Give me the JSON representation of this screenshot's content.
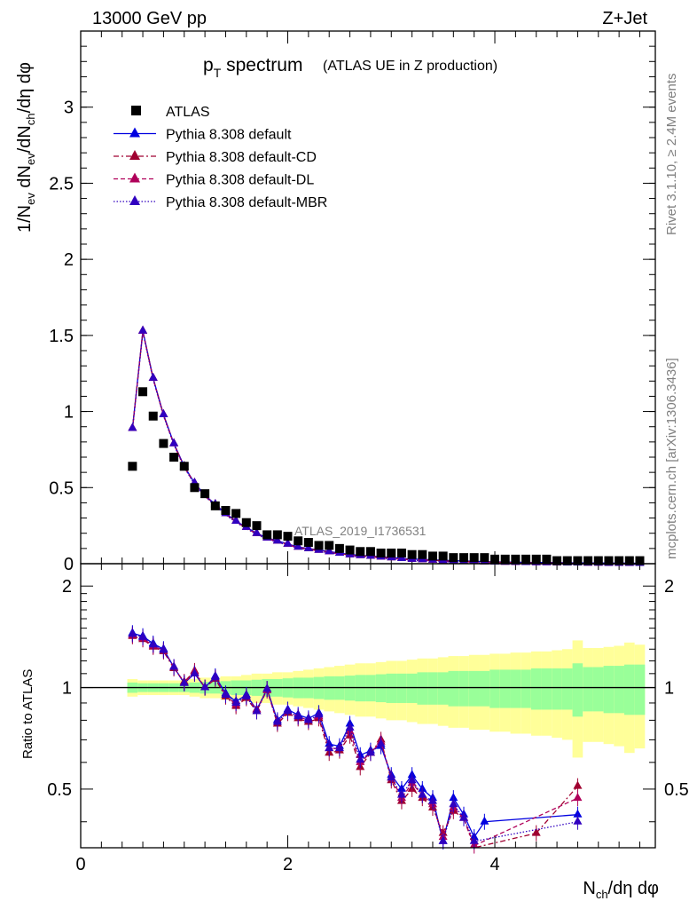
{
  "header": {
    "left": "13000 GeV pp",
    "right": "Z+Jet"
  },
  "plot_title": {
    "main_p": "p",
    "main_sub": "T",
    "main_rest": " spectrum",
    "suffix": "(ATLAS UE in Z production)"
  },
  "side_labels": {
    "rivet": "Rivet 3.1.10, ≥ 2.4M events",
    "mcplots": "mcplots.cern.ch [arXiv:1306.3436]"
  },
  "watermark": "ATLAS_2019_I1736531",
  "axes": {
    "ylabel_main": "1/N_ev dN_ev/dN_ch/dη dφ",
    "ylabel_ratio": "Ratio to ATLAS",
    "xlabel": "N_ch/dη dφ",
    "main_yticks": [
      "0",
      "0.5",
      "1",
      "1.5",
      "2",
      "2.5",
      "3"
    ],
    "ratio_yticks": [
      "0.5",
      "1",
      "2"
    ],
    "xticks": [
      "0",
      "2",
      "4"
    ]
  },
  "legend": [
    {
      "label": "ATLAS",
      "color": "#000000",
      "style": "marker"
    },
    {
      "label": "Pythia 8.308 default",
      "color": "#0000e0",
      "style": "solid"
    },
    {
      "label": "Pythia 8.308 default-CD",
      "color": "#a00030",
      "style": "dashdot"
    },
    {
      "label": "Pythia 8.308 default-DL",
      "color": "#b0005a",
      "style": "dashed"
    },
    {
      "label": "Pythia 8.308 default-MBR",
      "color": "#3000c0",
      "style": "dotted"
    }
  ],
  "chart_data": {
    "type": "scatter",
    "x_range": [
      0,
      5.55
    ],
    "main_ylim": [
      0,
      3.5
    ],
    "ratio_ylim": [
      0.335,
      2.33
    ],
    "ratio_log": true,
    "data": {
      "name": "ATLAS",
      "x": [
        0.5,
        0.6,
        0.7,
        0.8,
        0.9,
        1.0,
        1.1,
        1.2,
        1.3,
        1.4,
        1.5,
        1.6,
        1.7,
        1.8,
        1.9,
        2.0,
        2.1,
        2.2,
        2.3,
        2.4,
        2.5,
        2.6,
        2.7,
        2.8,
        2.9,
        3.0,
        3.1,
        3.2,
        3.3,
        3.4,
        3.5,
        3.6,
        3.7,
        3.8,
        3.9,
        4.0,
        4.1,
        4.2,
        4.3,
        4.4,
        4.5,
        4.6,
        4.7,
        4.8,
        4.9,
        5.0,
        5.1,
        5.2,
        5.3,
        5.4
      ],
      "y": [
        0.64,
        1.13,
        0.97,
        0.79,
        0.7,
        0.64,
        0.5,
        0.46,
        0.38,
        0.35,
        0.33,
        0.27,
        0.25,
        0.19,
        0.19,
        0.18,
        0.15,
        0.14,
        0.12,
        0.12,
        0.1,
        0.09,
        0.08,
        0.08,
        0.07,
        0.07,
        0.07,
        0.06,
        0.06,
        0.05,
        0.05,
        0.04,
        0.04,
        0.04,
        0.04,
        0.03,
        0.03,
        0.03,
        0.03,
        0.03,
        0.03,
        0.02,
        0.02,
        0.02,
        0.02,
        0.02,
        0.02,
        0.02,
        0.02,
        0.02
      ]
    },
    "mc": {
      "x": [
        0.5,
        0.6,
        0.7,
        0.8,
        0.9,
        1.0,
        1.1,
        1.2,
        1.3,
        1.4,
        1.5,
        1.6,
        1.7,
        1.8,
        1.9,
        2.0,
        2.1,
        2.2,
        2.3,
        2.4,
        2.5,
        2.6,
        2.7,
        2.8,
        2.9,
        3.0,
        3.1,
        3.2,
        3.3,
        3.4,
        3.5,
        3.6,
        3.7,
        3.8,
        3.9,
        4.0,
        4.1,
        4.2,
        4.3,
        4.4,
        4.5,
        4.6,
        4.7,
        4.8,
        4.9,
        5.0,
        5.1,
        5.2,
        5.3,
        5.4
      ],
      "y": [
        0.89,
        1.53,
        1.22,
        0.98,
        0.79,
        0.64,
        0.53,
        0.45,
        0.39,
        0.33,
        0.28,
        0.24,
        0.2,
        0.17,
        0.15,
        0.13,
        0.11,
        0.1,
        0.09,
        0.08,
        0.07,
        0.06,
        0.055,
        0.05,
        0.045,
        0.04,
        0.035,
        0.03,
        0.028,
        0.025,
        0.022,
        0.02,
        0.018,
        0.016,
        0.014,
        0.012,
        0.011,
        0.01,
        0.009,
        0.008,
        0.008,
        0.007,
        0.006,
        0.006,
        0.005,
        0.005,
        0.004,
        0.004,
        0.004,
        0.003
      ]
    },
    "ratio_series": [
      {
        "name": "Pythia 8.308 default",
        "color": "#0000e0",
        "dash": "",
        "x": [
          0.5,
          0.6,
          0.7,
          0.8,
          0.9,
          1.0,
          1.1,
          1.2,
          1.3,
          1.4,
          1.5,
          1.6,
          1.7,
          1.8,
          1.9,
          2.0,
          2.1,
          2.2,
          2.3,
          2.4,
          2.5,
          2.6,
          2.7,
          2.8,
          2.9,
          3.0,
          3.1,
          3.2,
          3.3,
          3.4,
          3.5,
          3.6,
          3.7,
          3.8,
          3.9,
          4.8
        ],
        "y": [
          1.45,
          1.42,
          1.35,
          1.3,
          1.15,
          1.03,
          1.1,
          1.0,
          1.08,
          0.96,
          0.91,
          0.95,
          0.86,
          0.99,
          0.8,
          0.86,
          0.83,
          0.81,
          0.84,
          0.68,
          0.67,
          0.78,
          0.63,
          0.65,
          0.67,
          0.55,
          0.5,
          0.55,
          0.5,
          0.47,
          0.35,
          0.47,
          0.42,
          0.36,
          0.4,
          0.42
        ]
      },
      {
        "name": "Pythia 8.308 default-CD",
        "color": "#a00030",
        "dash": "6,3,2,3",
        "x": [
          0.5,
          0.6,
          0.7,
          0.8,
          0.9,
          1.0,
          1.1,
          1.2,
          1.3,
          1.4,
          1.5,
          1.6,
          1.7,
          1.8,
          1.9,
          2.0,
          2.1,
          2.2,
          2.3,
          2.4,
          2.5,
          2.6,
          2.7,
          2.8,
          2.9,
          3.0,
          3.1,
          3.2,
          3.3,
          3.4,
          3.5,
          3.6,
          3.7,
          3.8,
          4.4,
          4.8
        ],
        "y": [
          1.42,
          1.39,
          1.32,
          1.28,
          1.14,
          1.04,
          1.12,
          1.0,
          1.06,
          0.94,
          0.88,
          0.93,
          0.85,
          0.99,
          0.78,
          0.84,
          0.81,
          0.79,
          0.81,
          0.64,
          0.65,
          0.72,
          0.58,
          0.64,
          0.7,
          0.53,
          0.46,
          0.5,
          0.47,
          0.44,
          0.37,
          0.43,
          0.41,
          0.33,
          0.37,
          0.51
        ]
      },
      {
        "name": "Pythia 8.308 default-DL",
        "color": "#b0005a",
        "dash": "5,3",
        "x": [
          0.5,
          0.6,
          0.7,
          0.8,
          0.9,
          1.0,
          1.1,
          1.2,
          1.3,
          1.4,
          1.5,
          1.6,
          1.7,
          1.8,
          1.9,
          2.0,
          2.1,
          2.2,
          2.3,
          2.4,
          2.5,
          2.6,
          2.7,
          2.8,
          2.9,
          3.0,
          3.1,
          3.2,
          3.3,
          3.4,
          3.5,
          3.6,
          3.7,
          3.8,
          4.8
        ],
        "y": [
          1.43,
          1.4,
          1.33,
          1.29,
          1.15,
          1.03,
          1.11,
          1.0,
          1.07,
          0.95,
          0.89,
          0.94,
          0.86,
          0.98,
          0.79,
          0.85,
          0.82,
          0.8,
          0.82,
          0.66,
          0.66,
          0.74,
          0.6,
          0.64,
          0.69,
          0.54,
          0.47,
          0.52,
          0.48,
          0.45,
          0.36,
          0.44,
          0.41,
          0.34,
          0.47
        ]
      },
      {
        "name": "Pythia 8.308 default-MBR",
        "color": "#3000c0",
        "dash": "1.5,2",
        "x": [
          0.5,
          0.6,
          0.7,
          0.8,
          0.9,
          1.0,
          1.1,
          1.2,
          1.3,
          1.4,
          1.5,
          1.6,
          1.7,
          1.8,
          1.9,
          2.0,
          2.1,
          2.2,
          2.3,
          2.4,
          2.5,
          2.6,
          2.7,
          2.8,
          2.9,
          3.0,
          3.1,
          3.2,
          3.3,
          3.4,
          3.5,
          3.6,
          3.7,
          3.8,
          4.8
        ],
        "y": [
          1.44,
          1.41,
          1.34,
          1.29,
          1.15,
          1.03,
          1.1,
          1.0,
          1.07,
          0.95,
          0.9,
          0.94,
          0.85,
          0.99,
          0.79,
          0.85,
          0.82,
          0.8,
          0.83,
          0.66,
          0.66,
          0.76,
          0.61,
          0.64,
          0.68,
          0.54,
          0.48,
          0.53,
          0.48,
          0.46,
          0.35,
          0.45,
          0.41,
          0.35,
          0.4
        ]
      }
    ],
    "bands": {
      "x_edges": [
        0.45,
        0.55,
        0.65,
        0.75,
        0.85,
        0.95,
        1.05,
        1.15,
        1.25,
        1.35,
        1.45,
        1.55,
        1.65,
        1.75,
        1.85,
        1.95,
        2.05,
        2.15,
        2.25,
        2.35,
        2.45,
        2.55,
        2.65,
        2.75,
        2.85,
        2.95,
        3.05,
        3.15,
        3.25,
        3.35,
        3.45,
        3.55,
        3.65,
        3.75,
        3.85,
        3.95,
        4.05,
        4.15,
        4.25,
        4.35,
        4.45,
        4.55,
        4.65,
        4.75,
        4.85,
        4.95,
        5.05,
        5.15,
        5.25,
        5.35,
        5.45
      ],
      "inner": [
        0.035,
        0.03,
        0.03,
        0.03,
        0.03,
        0.03,
        0.035,
        0.04,
        0.04,
        0.045,
        0.05,
        0.05,
        0.055,
        0.06,
        0.06,
        0.065,
        0.07,
        0.07,
        0.075,
        0.08,
        0.08,
        0.085,
        0.09,
        0.09,
        0.095,
        0.1,
        0.1,
        0.1,
        0.11,
        0.11,
        0.11,
        0.12,
        0.12,
        0.12,
        0.12,
        0.13,
        0.13,
        0.13,
        0.13,
        0.14,
        0.14,
        0.14,
        0.14,
        0.18,
        0.15,
        0.15,
        0.16,
        0.16,
        0.17,
        0.17
      ],
      "outer": [
        0.06,
        0.05,
        0.05,
        0.05,
        0.05,
        0.05,
        0.06,
        0.07,
        0.07,
        0.08,
        0.08,
        0.09,
        0.1,
        0.1,
        0.11,
        0.11,
        0.12,
        0.13,
        0.14,
        0.15,
        0.16,
        0.17,
        0.18,
        0.18,
        0.19,
        0.2,
        0.2,
        0.21,
        0.22,
        0.22,
        0.23,
        0.24,
        0.24,
        0.25,
        0.25,
        0.26,
        0.26,
        0.27,
        0.27,
        0.28,
        0.28,
        0.29,
        0.3,
        0.38,
        0.31,
        0.31,
        0.32,
        0.33,
        0.36,
        0.34
      ]
    }
  }
}
